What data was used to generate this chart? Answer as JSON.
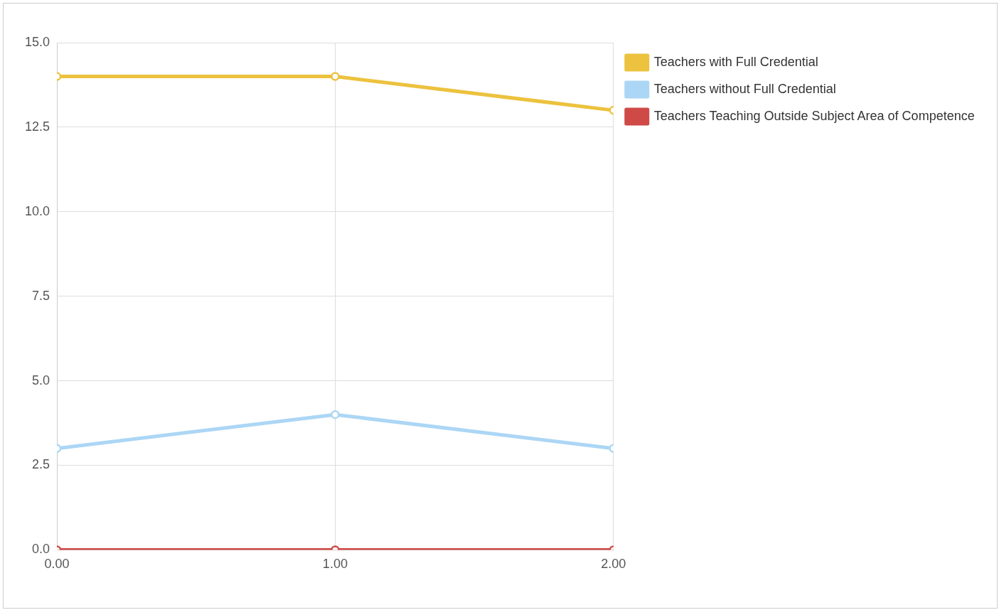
{
  "chart_data": {
    "type": "line",
    "x": [
      0,
      1,
      2
    ],
    "series": [
      {
        "name": "Teachers with Full Credential",
        "color": "#ecc23e",
        "values": [
          14,
          14,
          13
        ]
      },
      {
        "name": "Teachers without Full Credential",
        "color": "#acd6f5",
        "values": [
          3,
          4,
          3
        ]
      },
      {
        "name": "Teachers Teaching Outside Subject Area of Competence",
        "color": "#cf4a47",
        "values": [
          0,
          0,
          0
        ]
      }
    ],
    "xlim": [
      0,
      2
    ],
    "xticks": [
      {
        "value": 0,
        "label": "0.00"
      },
      {
        "value": 1,
        "label": "1.00"
      },
      {
        "value": 2,
        "label": "2.00"
      }
    ],
    "ylim": [
      0,
      15
    ],
    "yticks": [
      {
        "value": 0,
        "label": "0.0"
      },
      {
        "value": 2.5,
        "label": "2.5"
      },
      {
        "value": 5,
        "label": "5.0"
      },
      {
        "value": 7.5,
        "label": "7.5"
      },
      {
        "value": 10,
        "label": "10.0"
      },
      {
        "value": 12.5,
        "label": "12.5"
      },
      {
        "value": 15,
        "label": "15.0"
      }
    ],
    "grid": true,
    "legend": "top right",
    "marker": "circle",
    "line_style": "solid"
  }
}
